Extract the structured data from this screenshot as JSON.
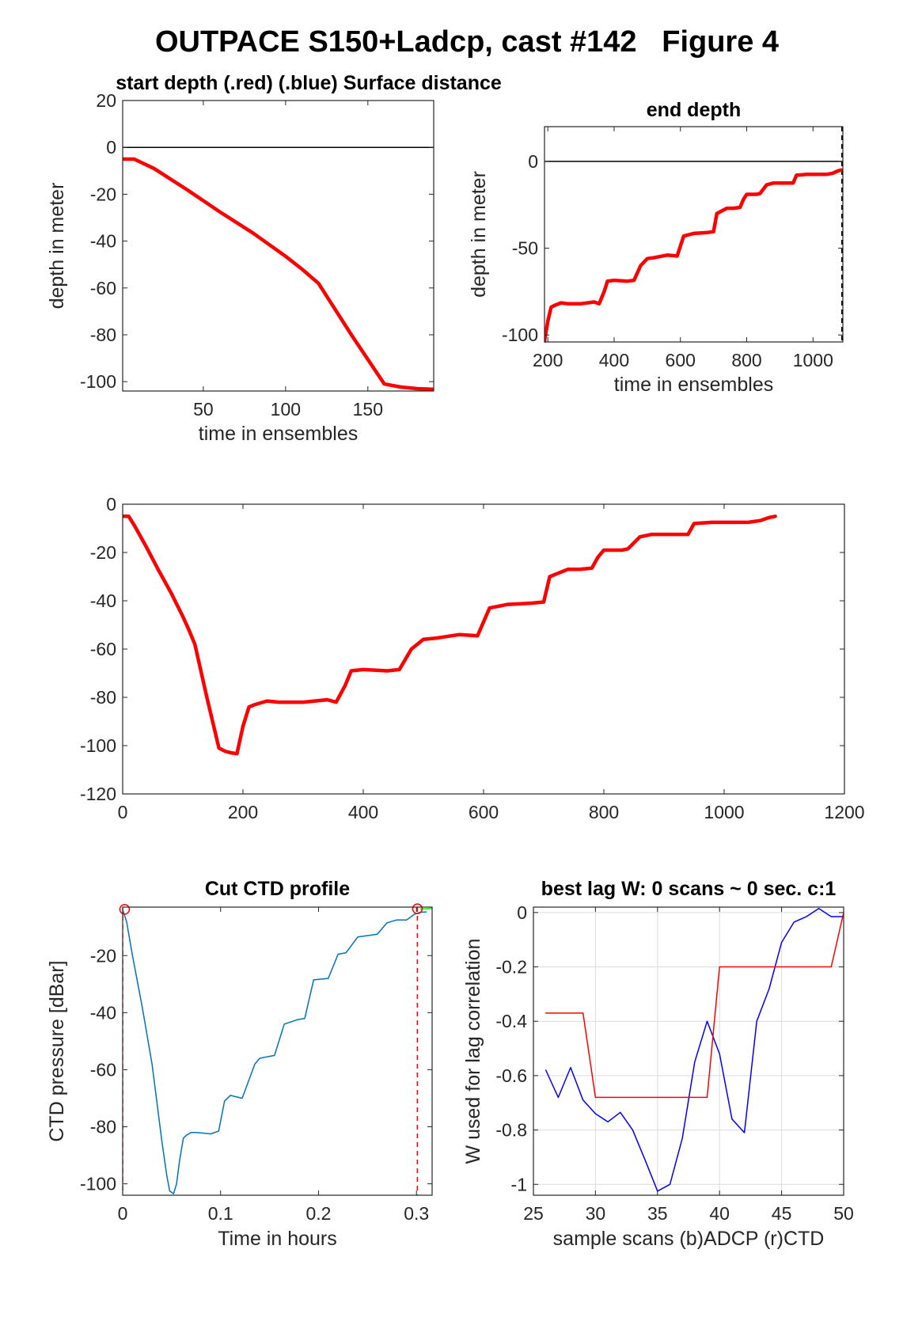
{
  "figure": {
    "title": "OUTPACE S150+Ladcp, cast #142   Figure 4"
  },
  "chart_data": [
    {
      "id": "start_depth",
      "type": "line",
      "title": "start depth (.red) (.blue) Surface distance",
      "xlabel": "time in ensembles",
      "ylabel": "depth in meter",
      "xlim": [
        1,
        190
      ],
      "ylim": [
        -104,
        20
      ],
      "xticks": [
        50,
        100,
        150
      ],
      "yticks": [
        20,
        0,
        -20,
        -40,
        -60,
        -80,
        -100
      ],
      "grid": false,
      "hlines": [
        {
          "y": 0,
          "color": "#000000"
        }
      ],
      "series": [
        {
          "color": "#ff0000",
          "x": [
            1,
            8,
            20,
            40,
            60,
            80,
            100,
            110,
            120,
            140,
            160,
            170,
            180,
            190
          ],
          "y": [
            -5,
            -5,
            -9,
            -18,
            -27.5,
            -36.5,
            -46.5,
            -52,
            -58,
            -80,
            -101,
            -102.3,
            -103,
            -103.3
          ]
        }
      ]
    },
    {
      "id": "end_depth",
      "type": "line",
      "title": "end depth",
      "xlabel": "time in ensembles",
      "ylabel": "depth in meter",
      "xlim": [
        190,
        1090
      ],
      "ylim": [
        -104,
        20
      ],
      "xticks": [
        200,
        400,
        600,
        800,
        1000
      ],
      "yticks": [
        0,
        -50,
        -100
      ],
      "grid": false,
      "hlines": [
        {
          "y": 0,
          "color": "#000000"
        }
      ],
      "vlines": [
        {
          "x": 1087,
          "color": "#000000",
          "style": "dashed"
        }
      ],
      "series": [
        {
          "color": "#ff0000",
          "x": [
            190,
            200,
            210,
            220,
            240,
            260,
            300,
            340,
            355,
            370,
            380,
            400,
            440,
            460,
            480,
            500,
            520,
            560,
            590,
            610,
            640,
            680,
            700,
            710,
            740,
            760,
            780,
            790,
            800,
            830,
            840,
            860,
            880,
            900,
            940,
            950,
            980,
            1000,
            1020,
            1040,
            1060,
            1075,
            1085
          ],
          "y": [
            -103.5,
            -92,
            -84,
            -83,
            -81.5,
            -82,
            -82,
            -81,
            -82,
            -75,
            -69,
            -68.5,
            -69,
            -68.5,
            -60,
            -56,
            -55.5,
            -54,
            -54.5,
            -43,
            -41.5,
            -41,
            -40.5,
            -30,
            -27,
            -27,
            -26.5,
            -22,
            -19,
            -19,
            -18.5,
            -13.5,
            -12.5,
            -12.5,
            -12.5,
            -8,
            -7.5,
            -7.5,
            -7.5,
            -7.5,
            -6.8,
            -5.5,
            -5
          ]
        }
      ]
    },
    {
      "id": "full_profile",
      "type": "line",
      "title": "",
      "xlabel": "",
      "ylabel": "",
      "xlim": [
        0,
        1200
      ],
      "ylim": [
        -120,
        0
      ],
      "xticks": [
        0,
        200,
        400,
        600,
        800,
        1000,
        1200
      ],
      "yticks": [
        0,
        -20,
        -40,
        -60,
        -80,
        -100,
        -120
      ],
      "grid": false,
      "series": [
        {
          "color": "#ff0000",
          "x": [
            0,
            10,
            20,
            40,
            60,
            80,
            100,
            110,
            120,
            140,
            160,
            170,
            180,
            190,
            200,
            210,
            220,
            240,
            260,
            300,
            340,
            355,
            370,
            380,
            400,
            440,
            460,
            480,
            500,
            520,
            560,
            590,
            610,
            640,
            680,
            700,
            710,
            740,
            760,
            780,
            790,
            800,
            830,
            840,
            860,
            880,
            900,
            940,
            950,
            980,
            1000,
            1020,
            1040,
            1060,
            1075,
            1085
          ],
          "y": [
            -5,
            -5,
            -9,
            -18,
            -27.5,
            -36.5,
            -46.5,
            -52,
            -58,
            -80,
            -101,
            -102.3,
            -103,
            -103.3,
            -92,
            -84,
            -83,
            -81.5,
            -82,
            -82,
            -81,
            -82,
            -75,
            -69,
            -68.5,
            -69,
            -68.5,
            -60,
            -56,
            -55.5,
            -54,
            -54.5,
            -43,
            -41.5,
            -41,
            -40.5,
            -30,
            -27,
            -27,
            -26.5,
            -22,
            -19,
            -19,
            -18.5,
            -13.5,
            -12.5,
            -12.5,
            -12.5,
            -8,
            -7.5,
            -7.5,
            -7.5,
            -7.5,
            -6.8,
            -5.5,
            -5
          ]
        }
      ]
    },
    {
      "id": "cut_ctd",
      "type": "line",
      "title": "Cut CTD profile",
      "xlabel": "Time in hours",
      "ylabel": "CTD pressure [dBar]",
      "xlim": [
        0,
        0.316
      ],
      "ylim": [
        -104,
        -3
      ],
      "xticks": [
        0,
        0.1,
        0.2,
        0.3
      ],
      "xticklabels": [
        "0",
        "0.1",
        "0.2",
        "0.3"
      ],
      "yticks": [
        -20,
        -40,
        -60,
        -80,
        -100
      ],
      "grid": false,
      "vlines": [
        {
          "x": 0,
          "color": "#ff0000",
          "style": "dashed"
        },
        {
          "x": 0.301,
          "color": "#ff0000",
          "style": "dashed"
        }
      ],
      "markers": [
        {
          "x": 0.002,
          "y": -3.8,
          "shape": "circle",
          "color": "#ff0000"
        },
        {
          "x": 0.301,
          "y": -3.6,
          "shape": "circle",
          "color": "#ff0000"
        }
      ],
      "series": [
        {
          "color": "#0072bd",
          "x": [
            0,
            0.004,
            0.01,
            0.02,
            0.03,
            0.04,
            0.045,
            0.048,
            0.052,
            0.055,
            0.058,
            0.062,
            0.065,
            0.07,
            0.075,
            0.09,
            0.098,
            0.104,
            0.11,
            0.122,
            0.135,
            0.14,
            0.147,
            0.155,
            0.165,
            0.178,
            0.186,
            0.195,
            0.21,
            0.22,
            0.228,
            0.24,
            0.26,
            0.27,
            0.28,
            0.29,
            0.298,
            0.304,
            0.31
          ],
          "y": [
            -4,
            -8,
            -20,
            -38,
            -58,
            -85,
            -97,
            -102.5,
            -103.5,
            -100,
            -92,
            -84,
            -83,
            -82,
            -82,
            -82.5,
            -81.5,
            -71,
            -69,
            -70,
            -58,
            -56,
            -55.5,
            -55,
            -44,
            -42.5,
            -42,
            -28.5,
            -28,
            -19.5,
            -19,
            -13.5,
            -12.5,
            -8.5,
            -7.5,
            -7.5,
            -5.5,
            -4.8,
            -4.7
          ]
        },
        {
          "color": "#00ff00",
          "x": [
            0.304,
            0.316
          ],
          "y": [
            -3.7,
            -3.4
          ]
        }
      ]
    },
    {
      "id": "best_lag",
      "type": "line",
      "title": "best lag W: 0 scans ~ 0 sec.  c:1",
      "xlabel": "sample scans (b)ADCP (r)CTD",
      "ylabel": "W used for lag correlation",
      "xlim": [
        25,
        50
      ],
      "ylim": [
        -1.04,
        0.02
      ],
      "xticks": [
        25,
        30,
        35,
        40,
        45,
        50
      ],
      "yticks": [
        0,
        -0.2,
        -0.4,
        -0.6,
        -0.8,
        -1
      ],
      "yticklabels": [
        "0",
        "-0.2",
        "-0.4",
        "-0.6",
        "-0.8",
        "-1"
      ],
      "grid": true,
      "series": [
        {
          "name": "(b)ADCP",
          "color": "#0000ff",
          "x": [
            26,
            27,
            28,
            29,
            30,
            31,
            32,
            33,
            34,
            35,
            36,
            37,
            38,
            39,
            40,
            41,
            42,
            43,
            44,
            45,
            46,
            47,
            48,
            49,
            50
          ],
          "y": [
            -0.58,
            -0.68,
            -0.57,
            -0.69,
            -0.74,
            -0.77,
            -0.735,
            -0.8,
            -0.91,
            -1.025,
            -1.0,
            -0.83,
            -0.55,
            -0.4,
            -0.52,
            -0.76,
            -0.81,
            -0.4,
            -0.28,
            -0.11,
            -0.035,
            -0.015,
            0.015,
            -0.015,
            -0.015
          ]
        },
        {
          "name": "(r)CTD",
          "color": "#ff0000",
          "x": [
            26,
            29,
            30,
            39,
            40,
            49,
            50
          ],
          "y": [
            -0.37,
            -0.37,
            -0.68,
            -0.68,
            -0.2,
            -0.2,
            0
          ]
        }
      ]
    }
  ]
}
